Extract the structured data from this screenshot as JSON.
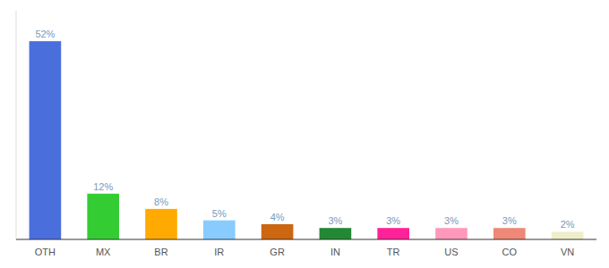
{
  "chart_data": {
    "type": "bar",
    "categories": [
      "OTH",
      "MX",
      "BR",
      "IR",
      "GR",
      "IN",
      "TR",
      "US",
      "CO",
      "VN"
    ],
    "values": [
      52,
      12,
      8,
      5,
      4,
      3,
      3,
      3,
      3,
      2
    ],
    "value_labels": [
      "52%",
      "12%",
      "8%",
      "5%",
      "4%",
      "3%",
      "3%",
      "3%",
      "3%",
      "2%"
    ],
    "colors": [
      "#4a6fdc",
      "#33cc33",
      "#ffaa00",
      "#88ccff",
      "#cc6611",
      "#228833",
      "#ff2299",
      "#ff99bb",
      "#ee8877",
      "#eeeecc"
    ],
    "ylim": [
      0,
      60
    ],
    "grid": false,
    "tick_labels": "x"
  }
}
